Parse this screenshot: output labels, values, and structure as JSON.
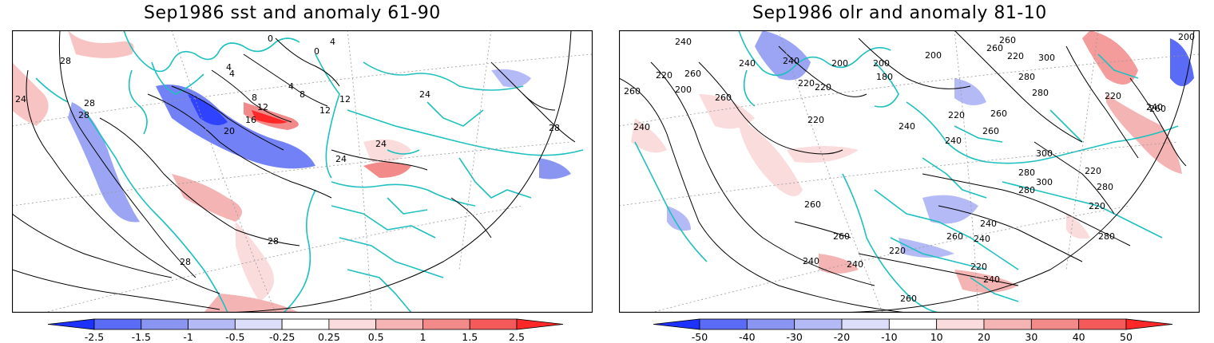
{
  "left_panel": {
    "title": "Sep1986 sst and anomaly 61-90",
    "colorbar": {
      "ticks": [
        "-2.5",
        "-1.5",
        "-1",
        "-0.5",
        "-0.25",
        "0.25",
        "0.5",
        "1",
        "1.5",
        "2.5"
      ],
      "colors": [
        "#1e32ff",
        "#5a6bf5",
        "#8a95f2",
        "#b4baf5",
        "#dcdefa",
        "#ffffff",
        "#fadcdc",
        "#f5b4b4",
        "#f28a8a",
        "#f55a5a",
        "#ff2828"
      ]
    },
    "contour_labels": [
      "28",
      "24",
      "28",
      "28",
      "20",
      "16",
      "12",
      "8",
      "4",
      "0",
      "0",
      "4",
      "8",
      "12",
      "12",
      "4",
      "24",
      "24",
      "24",
      "28",
      "28",
      "28",
      "4"
    ]
  },
  "right_panel": {
    "title": "Sep1986 olr and anomaly 81-10",
    "colorbar": {
      "ticks": [
        "-50",
        "-40",
        "-30",
        "-20",
        "-10",
        "10",
        "20",
        "30",
        "40",
        "50"
      ],
      "colors": [
        "#1e32ff",
        "#5a6bf5",
        "#8a95f2",
        "#b4baf5",
        "#dcdefa",
        "#ffffff",
        "#fadcdc",
        "#f5b4b4",
        "#f28a8a",
        "#f55a5a",
        "#ff2828"
      ]
    },
    "contour_labels": [
      "240",
      "260",
      "220",
      "260",
      "200",
      "240",
      "260",
      "240",
      "220",
      "240",
      "200",
      "200",
      "180",
      "200",
      "220",
      "220",
      "240",
      "220",
      "260",
      "260",
      "240",
      "280",
      "300",
      "220",
      "260",
      "280",
      "260",
      "300",
      "220",
      "280",
      "280",
      "220",
      "280",
      "240",
      "260",
      "240",
      "220",
      "240",
      "220",
      "240",
      "260",
      "240",
      "260",
      "260",
      "280",
      "300",
      "260",
      "200",
      "240",
      "220"
    ]
  }
}
